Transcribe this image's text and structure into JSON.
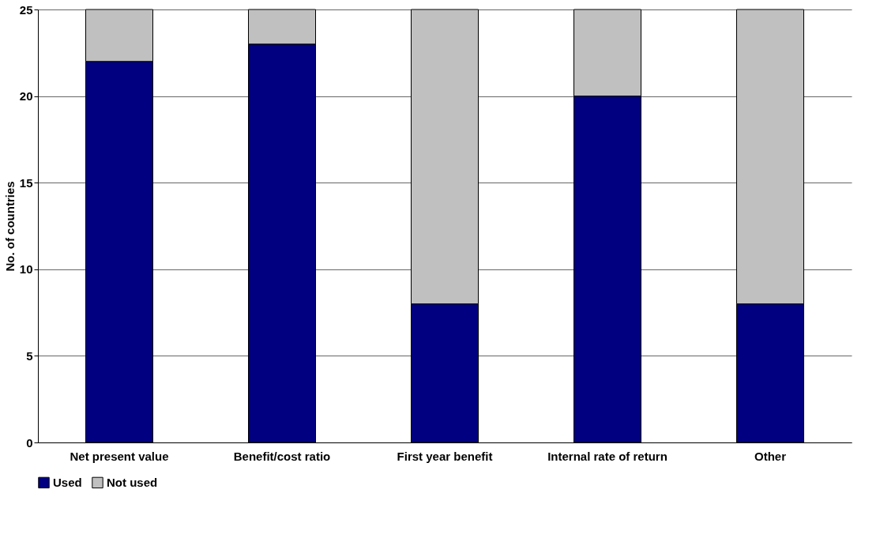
{
  "chart_data": {
    "type": "bar",
    "stacked": true,
    "ylabel": "No. of countries",
    "categories": [
      "Net present value",
      "Benefit/cost ratio",
      "First year benefit",
      "Internal rate of return",
      "Other"
    ],
    "series": [
      {
        "name": "Used",
        "color": "#000080",
        "values": [
          22,
          23,
          8,
          20,
          8
        ]
      },
      {
        "name": "Not used",
        "color": "#c0c0c0",
        "values": [
          3,
          2,
          17,
          5,
          17
        ]
      }
    ],
    "ylim": [
      0,
      25
    ],
    "yticks": [
      0,
      5,
      10,
      15,
      20,
      25
    ],
    "grid": "y",
    "legend": "bottom"
  }
}
